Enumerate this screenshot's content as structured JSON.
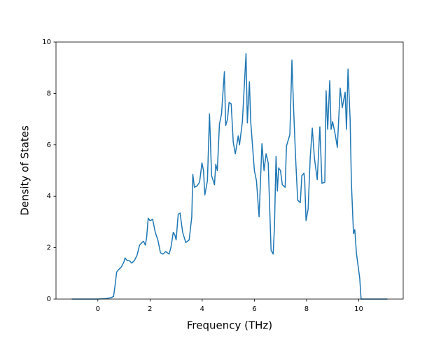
{
  "chart_data": {
    "type": "line",
    "x_label": "Frequency (THz)",
    "y_label": "Density of States",
    "xlim": [
      -1.605,
      11.705
    ],
    "ylim": [
      0,
      10
    ],
    "xticks": [
      0,
      2,
      4,
      6,
      8,
      10
    ],
    "yticks": [
      0,
      2,
      4,
      6,
      8,
      10
    ],
    "series": [
      {
        "color": "#1f77b4",
        "x": [
          -1,
          0,
          0.3,
          0.5,
          0.6,
          0.65,
          0.72,
          0.8,
          0.9,
          1.0,
          1.04,
          1.12,
          1.2,
          1.3,
          1.4,
          1.5,
          1.6,
          1.69,
          1.75,
          1.82,
          1.87,
          1.93,
          2.0,
          2.1,
          2.2,
          2.3,
          2.4,
          2.5,
          2.6,
          2.73,
          2.8,
          2.89,
          2.95,
          3.0,
          3.08,
          3.15,
          3.25,
          3.37,
          3.5,
          3.6,
          3.64,
          3.7,
          3.8,
          3.9,
          3.99,
          4.05,
          4.1,
          4.2,
          4.28,
          4.36,
          4.47,
          4.52,
          4.58,
          4.66,
          4.74,
          4.85,
          4.9,
          4.97,
          5.03,
          5.11,
          5.19,
          5.27,
          5.38,
          5.43,
          5.54,
          5.68,
          5.73,
          5.81,
          5.86,
          6.0,
          6.08,
          6.18,
          6.29,
          6.37,
          6.45,
          6.53,
          6.64,
          6.72,
          6.77,
          6.83,
          6.88,
          6.93,
          7.0,
          7.07,
          7.18,
          7.23,
          7.36,
          7.44,
          7.5,
          7.58,
          7.66,
          7.76,
          7.82,
          7.9,
          7.93,
          7.98,
          8.06,
          8.14,
          8.22,
          8.3,
          8.41,
          8.51,
          8.59,
          8.7,
          8.75,
          8.81,
          8.89,
          8.94,
          9.0,
          9.1,
          9.18,
          9.29,
          9.37,
          9.48,
          9.53,
          9.59,
          9.67,
          9.72,
          9.8,
          9.85,
          9.91,
          10.04,
          10.09,
          11.1
        ],
        "values": [
          0,
          0,
          0.02,
          0.05,
          0.1,
          0.45,
          1.05,
          1.15,
          1.25,
          1.45,
          1.6,
          1.5,
          1.5,
          1.4,
          1.5,
          1.7,
          2.1,
          2.2,
          2.25,
          2.1,
          2.4,
          3.15,
          3.05,
          3.1,
          2.6,
          2.3,
          1.8,
          1.75,
          1.85,
          1.75,
          2.0,
          2.6,
          2.5,
          2.3,
          3.3,
          3.35,
          2.6,
          2.2,
          2.3,
          3.2,
          4.85,
          4.35,
          4.4,
          4.55,
          5.3,
          5.0,
          4.05,
          4.6,
          7.2,
          4.8,
          4.45,
          5.25,
          5.0,
          6.8,
          7.2,
          8.85,
          6.75,
          7.0,
          7.65,
          7.6,
          6.1,
          5.65,
          6.35,
          6.0,
          6.9,
          9.55,
          6.85,
          8.45,
          6.9,
          5.0,
          4.6,
          3.2,
          6.05,
          5.0,
          5.65,
          5.3,
          1.9,
          1.75,
          2.8,
          5.55,
          4.2,
          5.1,
          5.0,
          4.45,
          4.35,
          5.95,
          6.4,
          9.3,
          7.5,
          5.5,
          3.85,
          3.75,
          4.8,
          4.9,
          4.6,
          3.05,
          3.5,
          5.5,
          6.65,
          5.5,
          4.65,
          6.7,
          4.5,
          4.55,
          8.1,
          6.6,
          8.5,
          6.6,
          6.9,
          6.4,
          5.9,
          8.2,
          7.45,
          8.05,
          6.6,
          8.95,
          7.0,
          4.5,
          2.55,
          2.7,
          1.8,
          0.8,
          0,
          0
        ]
      }
    ]
  }
}
